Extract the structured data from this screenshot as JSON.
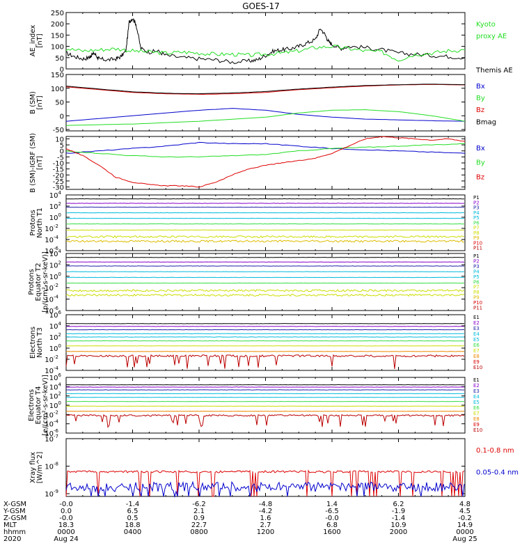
{
  "title": "GOES-17",
  "colors": {
    "black": "#000000",
    "green": "#22dd22",
    "blue": "#0000cc",
    "red": "#dd0000",
    "purple": "#8800cc",
    "navy": "#2222aa",
    "cyan": "#00bbdd",
    "teal": "#00ccaa",
    "lgreen": "#33dd44",
    "yellow": "#ccdd00",
    "gold": "#ddbb00",
    "orange": "#ee8800",
    "darkred": "#bb0000"
  },
  "chart_data": [
    {
      "type": "line",
      "ylabel": [
        "AE_index",
        "[nT]"
      ],
      "yticks": [
        "250",
        "200",
        "150",
        "100",
        "50",
        "0"
      ],
      "ylim": [
        0,
        250
      ],
      "legend": [
        {
          "label": "Kyoto",
          "color": "green"
        },
        {
          "label": "proxy AE",
          "color": "green"
        },
        {
          "label": "Themis AE",
          "color": "black"
        }
      ],
      "series": [
        {
          "name": "Themis AE",
          "color": "black",
          "x": [
            0,
            0.5,
            1,
            1.4,
            1.5,
            1.7,
            1.9,
            2.0,
            2.5,
            3,
            3.3,
            3.6,
            3.8,
            4,
            4.2,
            4.5,
            5,
            5.5,
            6,
            7,
            8,
            9,
            10,
            11,
            11.5,
            12,
            12.5,
            13,
            13.5,
            14,
            14.5,
            15,
            15.3,
            15.6,
            15.8,
            16,
            16.5,
            17,
            18,
            19,
            20,
            21,
            22,
            23,
            24
          ],
          "y": [
            70,
            55,
            45,
            50,
            60,
            70,
            50,
            45,
            40,
            45,
            55,
            80,
            210,
            225,
            200,
            90,
            75,
            80,
            60,
            50,
            45,
            40,
            30,
            35,
            40,
            60,
            80,
            85,
            90,
            100,
            115,
            130,
            180,
            150,
            120,
            110,
            90,
            100,
            95,
            85,
            70,
            65,
            60,
            55,
            50
          ]
        },
        {
          "name": "Kyoto proxy AE",
          "color": "green",
          "x": [
            0,
            1,
            2,
            3,
            4,
            5,
            6,
            7,
            8,
            9,
            10,
            11,
            12,
            13,
            14,
            15,
            16,
            17,
            18,
            19,
            20,
            21,
            22,
            23,
            24
          ],
          "y": [
            90,
            80,
            85,
            90,
            80,
            75,
            70,
            75,
            70,
            65,
            65,
            60,
            65,
            70,
            80,
            95,
            100,
            90,
            80,
            75,
            40,
            65,
            70,
            80,
            85
          ]
        }
      ]
    },
    {
      "type": "line",
      "ylabel": [
        "B (SM)",
        "[nT]"
      ],
      "yticks": [
        "150",
        "100",
        "50",
        "0",
        "-50"
      ],
      "ylim": [
        -55,
        150
      ],
      "legend": [
        {
          "label": "Bx",
          "color": "blue"
        },
        {
          "label": "By",
          "color": "green"
        },
        {
          "label": "Bz",
          "color": "red"
        },
        {
          "label": "Bmag",
          "color": "black"
        }
      ],
      "series": [
        {
          "name": "Bx",
          "color": "blue",
          "x": [
            0,
            4,
            8,
            10,
            12,
            14,
            16,
            18,
            20,
            22,
            24
          ],
          "y": [
            -20,
            0,
            20,
            27,
            20,
            5,
            -5,
            -12,
            -15,
            -18,
            -20
          ]
        },
        {
          "name": "By",
          "color": "green",
          "x": [
            0,
            4,
            8,
            12,
            14,
            16,
            18,
            20,
            22,
            24
          ],
          "y": [
            -35,
            -30,
            -20,
            -5,
            10,
            20,
            22,
            15,
            0,
            -20
          ]
        },
        {
          "name": "Bz",
          "color": "red",
          "x": [
            0,
            2,
            4,
            6,
            8,
            10,
            12,
            14,
            16,
            18,
            20,
            22,
            24
          ],
          "y": [
            105,
            95,
            85,
            80,
            78,
            80,
            85,
            95,
            102,
            108,
            112,
            114,
            112
          ]
        },
        {
          "name": "Bmag",
          "color": "black",
          "x": [
            0,
            2,
            4,
            6,
            8,
            10,
            12,
            14,
            16,
            18,
            20,
            22,
            24
          ],
          "y": [
            108,
            97,
            87,
            82,
            80,
            83,
            88,
            97,
            104,
            110,
            113,
            115,
            113
          ]
        }
      ]
    },
    {
      "type": "line",
      "ylabel": [
        "B (SM)-IGRF (SM)",
        "[nT]"
      ],
      "yticks": [
        "10",
        "5",
        "0",
        "-5",
        "-10",
        "-15",
        "-20",
        "-25",
        "-30"
      ],
      "ylim": [
        -32,
        12
      ],
      "legend": [
        {
          "label": "Bx",
          "color": "blue"
        },
        {
          "label": "By",
          "color": "green"
        },
        {
          "label": "Bz",
          "color": "red"
        }
      ],
      "series": [
        {
          "name": "Bx",
          "color": "blue",
          "x": [
            0,
            2,
            4,
            6,
            8,
            10,
            12,
            14,
            16,
            18,
            20,
            22,
            24
          ],
          "y": [
            -2,
            0,
            2,
            4,
            7,
            6,
            6,
            4,
            2,
            1,
            0,
            -1,
            -2
          ]
        },
        {
          "name": "By",
          "color": "green",
          "x": [
            0,
            2,
            4,
            6,
            8,
            10,
            12,
            14,
            16,
            18,
            20,
            22,
            24
          ],
          "y": [
            0,
            -2,
            -4,
            -5,
            -5,
            -4,
            -3,
            0,
            2,
            3,
            4,
            5,
            6
          ]
        },
        {
          "name": "Bz",
          "color": "red",
          "x": [
            0,
            1,
            2,
            3,
            4,
            5,
            6,
            7,
            8,
            9,
            10,
            11,
            12,
            13,
            14,
            15,
            16,
            17,
            18,
            19,
            20,
            21,
            22,
            23,
            24
          ],
          "y": [
            2,
            -4,
            -12,
            -22,
            -26,
            -28,
            -29,
            -29,
            -30,
            -26,
            -20,
            -15,
            -12,
            -10,
            -8,
            -6,
            -2,
            4,
            10,
            12,
            11,
            10,
            9,
            10,
            8
          ]
        }
      ]
    },
    {
      "type": "line",
      "log": true,
      "ylabel": [
        "Protons",
        "North T1"
      ],
      "yticks": [
        "10^4",
        "10^2",
        "10^0",
        "10^-2",
        "10^-4",
        "10^-6"
      ],
      "ylim": [
        -6,
        4
      ],
      "legend": [
        {
          "label": "P1",
          "color": "black"
        },
        {
          "label": "P2",
          "color": "purple"
        },
        {
          "label": "P3",
          "color": "navy"
        },
        {
          "label": "P4",
          "color": "cyan"
        },
        {
          "label": "P5",
          "color": "cyan"
        },
        {
          "label": "P6",
          "color": "lgreen"
        },
        {
          "label": "P7",
          "color": "yellow"
        },
        {
          "label": "P8",
          "color": "yellow"
        },
        {
          "label": "P9",
          "color": "gold"
        },
        {
          "label": "P10",
          "color": "red"
        },
        {
          "label": "P11",
          "color": "darkred"
        }
      ],
      "levels": [
        {
          "name": "P1",
          "color": "black",
          "logy": 3.3
        },
        {
          "name": "P2",
          "color": "purple",
          "logy": 2.5
        },
        {
          "name": "P3",
          "color": "navy",
          "logy": 1.8
        },
        {
          "name": "P4",
          "color": "cyan",
          "logy": 0.8
        },
        {
          "name": "P5",
          "color": "cyan",
          "logy": -0.2
        },
        {
          "name": "P6",
          "color": "lgreen",
          "logy": -1.2
        },
        {
          "name": "P7",
          "color": "yellow",
          "logy": -2.3
        },
        {
          "name": "P8",
          "color": "yellow",
          "logy": -3.5
        },
        {
          "name": "P9",
          "color": "gold",
          "logy": -4.3
        }
      ]
    },
    {
      "type": "line",
      "log": true,
      "ylabel": [
        "Protons",
        "Equator T2",
        "[p/(cm²-s-sr-keV)]"
      ],
      "yticks": [
        "10^4",
        "10^2",
        "10^0",
        "10^-2",
        "10^-4",
        "10^-6"
      ],
      "ylim": [
        -6,
        4
      ],
      "legend": [
        {
          "label": "P1",
          "color": "black"
        },
        {
          "label": "P2",
          "color": "purple"
        },
        {
          "label": "P3",
          "color": "navy"
        },
        {
          "label": "P4",
          "color": "cyan"
        },
        {
          "label": "P5",
          "color": "cyan"
        },
        {
          "label": "P6",
          "color": "lgreen"
        },
        {
          "label": "P7",
          "color": "yellow"
        },
        {
          "label": "P8",
          "color": "yellow"
        },
        {
          "label": "P9",
          "color": "gold"
        },
        {
          "label": "P10",
          "color": "red"
        },
        {
          "label": "P11",
          "color": "darkred"
        }
      ],
      "levels": [
        {
          "name": "P1",
          "color": "black",
          "logy": 3.3
        },
        {
          "name": "P2",
          "color": "purple",
          "logy": 2.5
        },
        {
          "name": "P3",
          "color": "navy",
          "logy": 1.8
        },
        {
          "name": "P4",
          "color": "cyan",
          "logy": 0.8
        },
        {
          "name": "P5",
          "color": "cyan",
          "logy": -0.2
        },
        {
          "name": "P6",
          "color": "lgreen",
          "logy": -1.2
        },
        {
          "name": "P7",
          "color": "yellow",
          "logy": -2.5
        },
        {
          "name": "P8",
          "color": "yellow",
          "logy": -3.3
        }
      ]
    },
    {
      "type": "line",
      "log": true,
      "ylabel": [
        "Electrons",
        "North T3"
      ],
      "yticks": [
        "10^6",
        "10^4",
        "10^2",
        "10^0",
        "10^-2",
        "10^-4"
      ],
      "ylim": [
        -4,
        6
      ],
      "legend": [
        {
          "label": "E1",
          "color": "black"
        },
        {
          "label": "E2",
          "color": "purple"
        },
        {
          "label": "E3",
          "color": "navy"
        },
        {
          "label": "E4",
          "color": "cyan"
        },
        {
          "label": "E5",
          "color": "cyan"
        },
        {
          "label": "E6",
          "color": "lgreen"
        },
        {
          "label": "E7",
          "color": "yellow"
        },
        {
          "label": "E8",
          "color": "orange"
        },
        {
          "label": "E9",
          "color": "red"
        },
        {
          "label": "E10",
          "color": "darkred"
        }
      ],
      "levels": [
        {
          "name": "E1",
          "color": "black",
          "logy": 4.4
        },
        {
          "name": "E2",
          "color": "purple",
          "logy": 3.9
        },
        {
          "name": "E3",
          "color": "navy",
          "logy": 3.3
        },
        {
          "name": "E4",
          "color": "cyan",
          "logy": 2.6
        },
        {
          "name": "E5",
          "color": "cyan",
          "logy": 2.0
        },
        {
          "name": "E6",
          "color": "lgreen",
          "logy": 1.3
        },
        {
          "name": "E7",
          "color": "yellow",
          "logy": 0.4
        },
        {
          "name": "E8",
          "color": "orange",
          "logy": -0.6
        },
        {
          "name": "E9",
          "color": "darkred",
          "logy": -1.4
        }
      ]
    },
    {
      "type": "line",
      "log": true,
      "ylabel": [
        "Electrons",
        "Equator T4",
        "[e/(cm²-s-sr-keV)]"
      ],
      "yticks": [
        "10^6",
        "10^4",
        "10^2",
        "10^0",
        "10^-2",
        "10^-4",
        "10^-6"
      ],
      "ylim": [
        -6,
        6
      ],
      "legend": [
        {
          "label": "E1",
          "color": "black"
        },
        {
          "label": "E2",
          "color": "purple"
        },
        {
          "label": "E3",
          "color": "navy"
        },
        {
          "label": "E4",
          "color": "cyan"
        },
        {
          "label": "E5",
          "color": "cyan"
        },
        {
          "label": "E6",
          "color": "lgreen"
        },
        {
          "label": "E7",
          "color": "yellow"
        },
        {
          "label": "E8",
          "color": "orange"
        },
        {
          "label": "E9",
          "color": "red"
        },
        {
          "label": "E10",
          "color": "darkred"
        }
      ],
      "levels": [
        {
          "name": "E1",
          "color": "black",
          "logy": 4.4
        },
        {
          "name": "E2",
          "color": "purple",
          "logy": 3.9
        },
        {
          "name": "E3",
          "color": "navy",
          "logy": 3.3
        },
        {
          "name": "E4",
          "color": "cyan",
          "logy": 2.5
        },
        {
          "name": "E5",
          "color": "cyan",
          "logy": 1.7
        },
        {
          "name": "E6",
          "color": "lgreen",
          "logy": 0.8
        },
        {
          "name": "E7",
          "color": "yellow",
          "logy": -0.2
        },
        {
          "name": "E8",
          "color": "orange",
          "logy": -1.3
        },
        {
          "name": "E9",
          "color": "darkred",
          "logy": -2.2
        }
      ]
    },
    {
      "type": "line",
      "log": true,
      "ylabel": [
        "Xray flux",
        "[W/m^2]"
      ],
      "yticks": [
        "10^-7",
        "10^-8",
        "10^-9"
      ],
      "ylim": [
        -9.1,
        -7
      ],
      "legend": [
        {
          "label": "0.1-0.8 nm",
          "color": "red"
        },
        {
          "label": "0.05-0.4 nm",
          "color": "blue"
        }
      ],
      "levels": [
        {
          "name": "0.1-0.8 nm",
          "color": "red",
          "logy": -8.2
        },
        {
          "name": "0.05-0.4 nm",
          "color": "blue",
          "logy": -8.75
        }
      ]
    }
  ],
  "x_axis": {
    "range": [
      0,
      24
    ],
    "rows": [
      {
        "label": "X-GSM",
        "values": [
          "-0.0",
          "-1.4",
          "-6.2",
          "-4.8",
          "1.4",
          "6.2",
          "4.8"
        ]
      },
      {
        "label": "Y-GSM",
        "values": [
          "0.0",
          "6.5",
          "2.1",
          "-4.2",
          "-6.5",
          "-1.9",
          "4.5"
        ]
      },
      {
        "label": "Z-GSM",
        "values": [
          "-0.0",
          "0.5",
          "0.9",
          "1.6",
          "-0.0",
          "-1.4",
          "-0.2"
        ]
      },
      {
        "label": "MLT",
        "values": [
          "18.3",
          "18.8",
          "22.7",
          "2.7",
          "6.8",
          "10.9",
          "14.9"
        ]
      },
      {
        "label": "hhmm",
        "values": [
          "0000",
          "0400",
          "0800",
          "1200",
          "1600",
          "2000",
          "0000"
        ]
      },
      {
        "label": "2020",
        "values": [
          "Aug 24",
          "",
          "",
          "",
          "",
          "",
          "Aug 25"
        ]
      }
    ]
  }
}
